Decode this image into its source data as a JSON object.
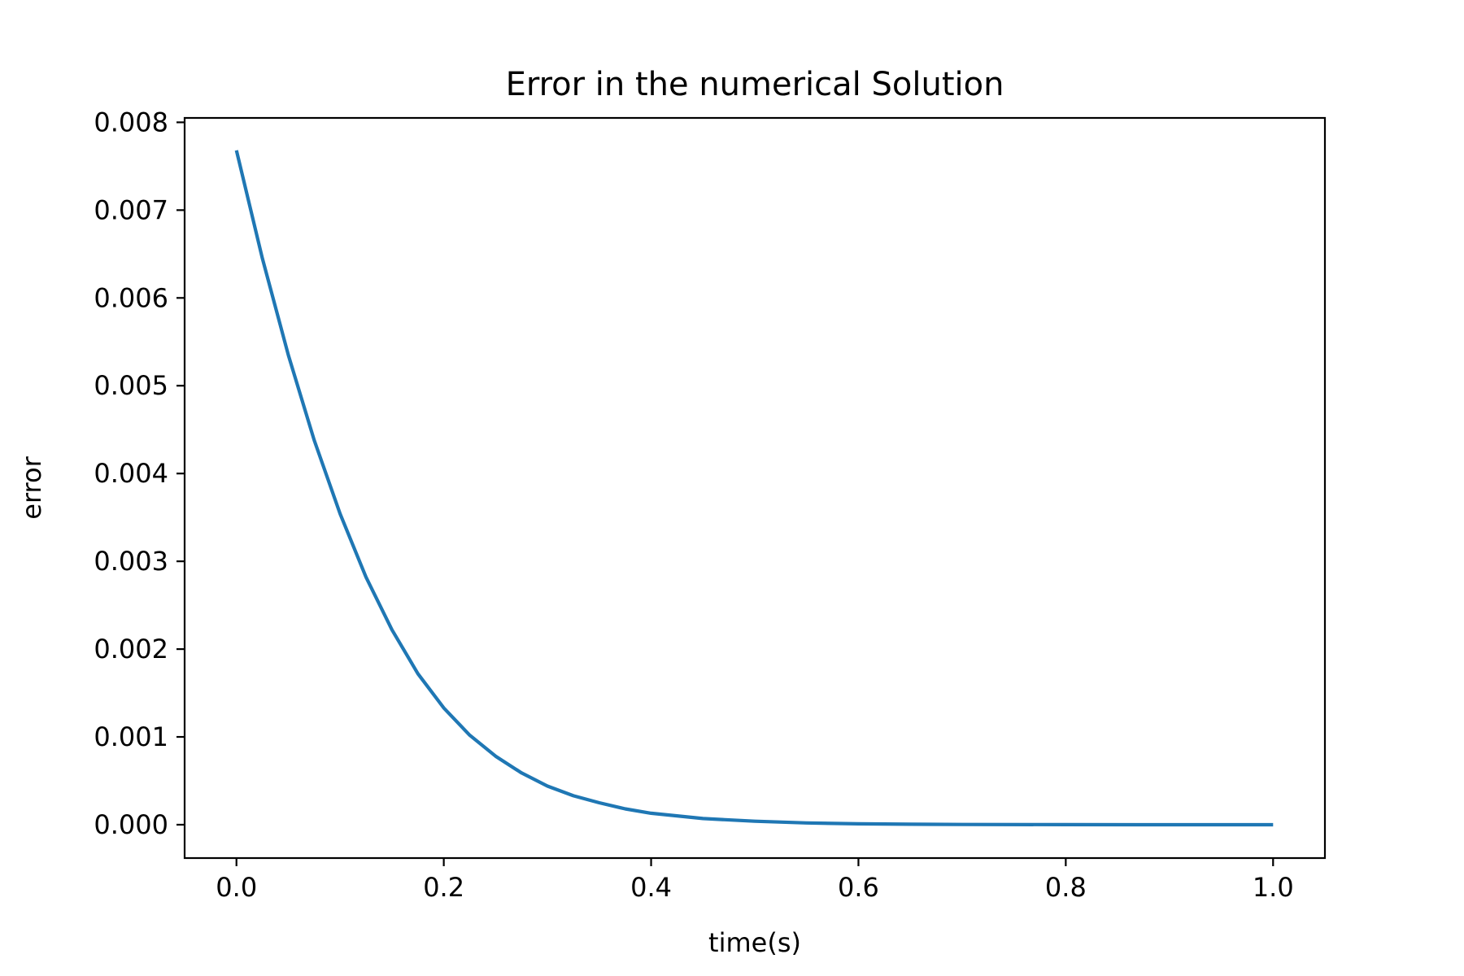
{
  "chart_data": {
    "type": "line",
    "title": "Error in the numerical Solution",
    "xlabel": "time(s)",
    "ylabel": "error",
    "xlim": [
      -0.05,
      1.05
    ],
    "ylim": [
      -0.00038,
      0.00805
    ],
    "x_ticks": [
      0.0,
      0.2,
      0.4,
      0.6,
      0.8,
      1.0
    ],
    "x_tick_labels": [
      "0.0",
      "0.2",
      "0.4",
      "0.6",
      "0.8",
      "1.0"
    ],
    "y_ticks": [
      0.0,
      0.001,
      0.002,
      0.003,
      0.004,
      0.005,
      0.006,
      0.007,
      0.008
    ],
    "y_tick_labels": [
      "0.000",
      "0.001",
      "0.002",
      "0.003",
      "0.004",
      "0.005",
      "0.006",
      "0.007",
      "0.008"
    ],
    "grid": false,
    "series": [
      {
        "name": "error",
        "color": "#1f77b4",
        "x": [
          0.0,
          0.025,
          0.05,
          0.075,
          0.1,
          0.125,
          0.15,
          0.175,
          0.2,
          0.225,
          0.25,
          0.275,
          0.3,
          0.325,
          0.35,
          0.375,
          0.4,
          0.45,
          0.5,
          0.55,
          0.6,
          0.65,
          0.7,
          0.8,
          0.9,
          1.0
        ],
        "y": [
          0.00768,
          0.00645,
          0.00535,
          0.00438,
          0.00354,
          0.00282,
          0.00222,
          0.00172,
          0.00133,
          0.00102,
          0.00078,
          0.00059,
          0.00044,
          0.00033,
          0.00025,
          0.00018,
          0.00013,
          7e-05,
          4e-05,
          2e-05,
          1e-05,
          5e-06,
          3e-06,
          1e-06,
          0.0,
          0.0
        ]
      }
    ]
  }
}
